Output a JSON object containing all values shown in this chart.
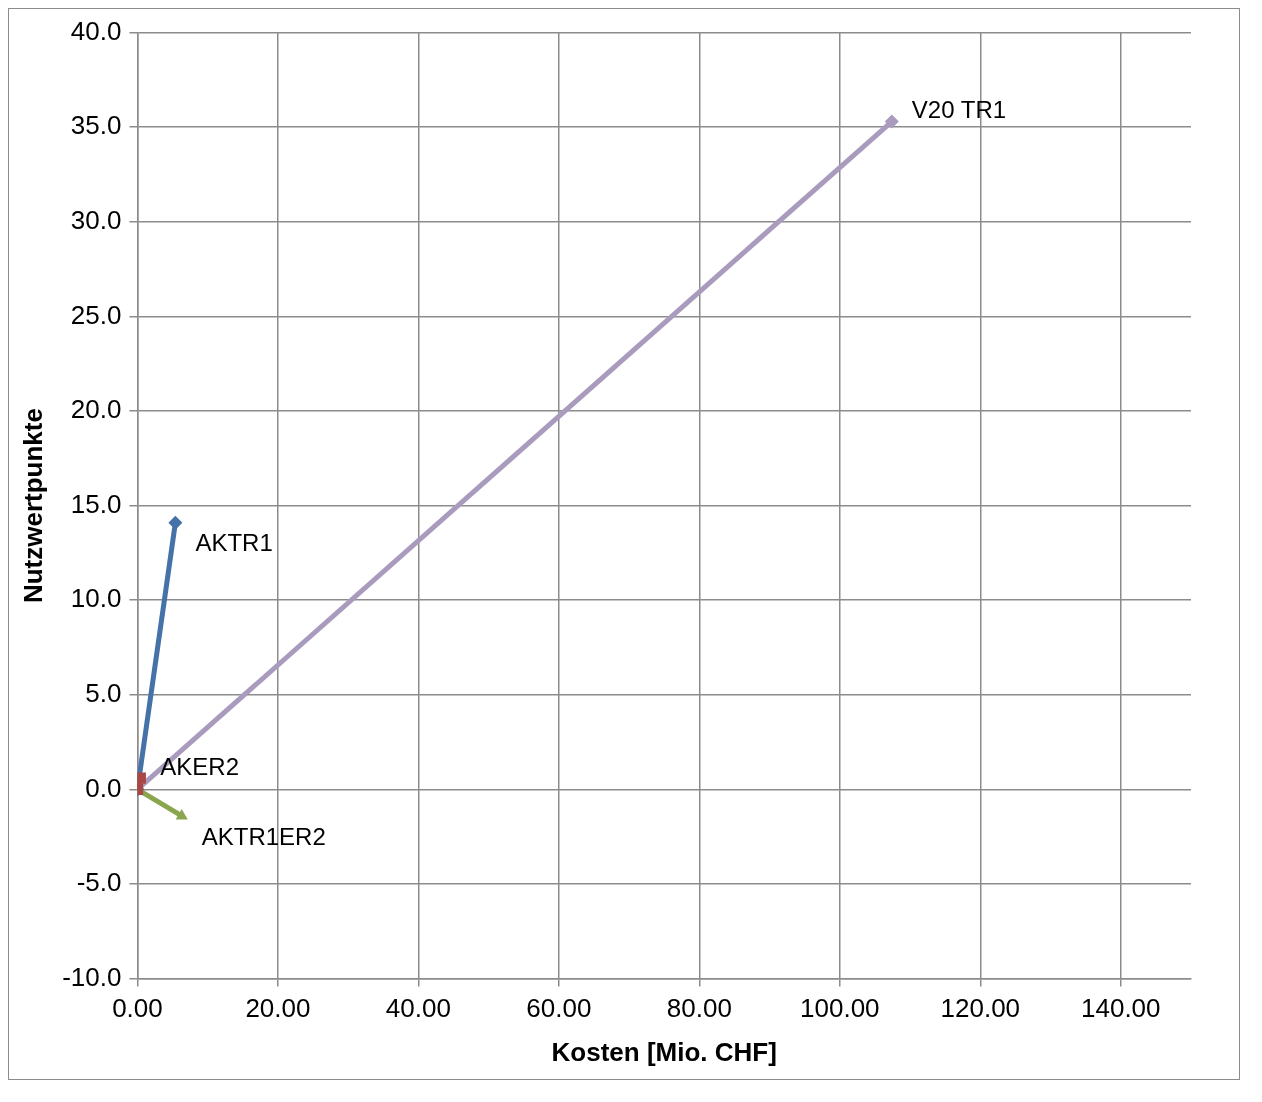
{
  "chart_data": {
    "type": "line",
    "xlabel": "Kosten [Mio. CHF]",
    "ylabel": "Nutzwertpunkte",
    "legend": false,
    "grid": true,
    "xlim": [
      0,
      150
    ],
    "xticks": [
      {
        "value": 0,
        "label": "0.00"
      },
      {
        "value": 20,
        "label": "20.00"
      },
      {
        "value": 40,
        "label": "40.00"
      },
      {
        "value": 60,
        "label": "60.00"
      },
      {
        "value": 80,
        "label": "80.00"
      },
      {
        "value": 100,
        "label": "100.00"
      },
      {
        "value": 120,
        "label": "120.00"
      },
      {
        "value": 140,
        "label": "140.00"
      }
    ],
    "ylim": [
      -10,
      40
    ],
    "yticks": [
      {
        "value": -10,
        "label": "-10.0"
      },
      {
        "value": -5,
        "label": "-5.0"
      },
      {
        "value": 0,
        "label": "0.0"
      },
      {
        "value": 5,
        "label": "5.0"
      },
      {
        "value": 10,
        "label": "10.0"
      },
      {
        "value": 15,
        "label": "15.0"
      },
      {
        "value": 20,
        "label": "20.0"
      },
      {
        "value": 25,
        "label": "25.0"
      },
      {
        "value": 30,
        "label": "30.0"
      },
      {
        "value": 35,
        "label": "35.0"
      },
      {
        "value": 40,
        "label": "40.0"
      }
    ],
    "series": [
      {
        "name": "AKTR1",
        "color": "#4572a7",
        "marker": "diamond",
        "x": [
          0,
          5.4
        ],
        "values": [
          0,
          14.1
        ]
      },
      {
        "name": "AKER2",
        "color": "#aa4643",
        "marker": "square",
        "x": [
          0,
          0.4
        ],
        "values": [
          0,
          0.6
        ]
      },
      {
        "name": "AKTR1ER2",
        "color": "#89a54e",
        "marker": "triangle",
        "x": [
          0,
          6.3
        ],
        "values": [
          0,
          -1.4
        ]
      },
      {
        "name": "V20 TR1",
        "color": "#a99bbd",
        "marker": "diamond",
        "x": [
          0,
          107.4
        ],
        "values": [
          0,
          35.3
        ]
      }
    ]
  }
}
